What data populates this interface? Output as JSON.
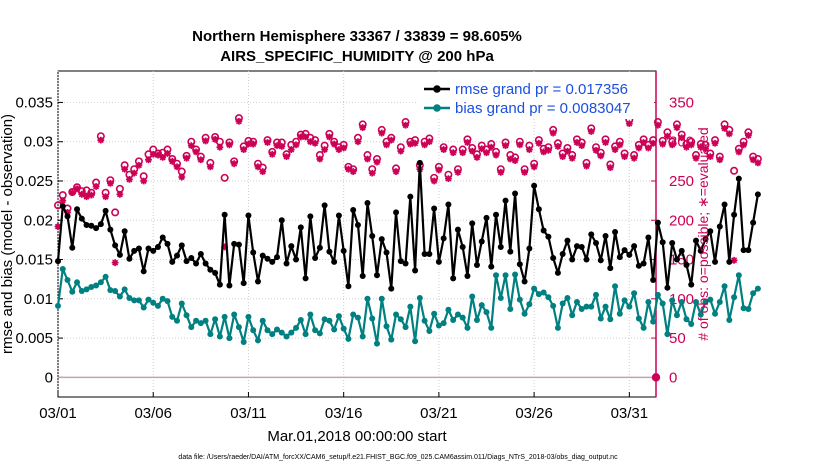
{
  "colors": {
    "rmse": "#000000",
    "bias": "#008080",
    "obs": "#cc0055",
    "legend_text": "#1a4fe0",
    "zero_line": "#c8a0b0"
  },
  "chart_data": {
    "type": "line",
    "title_line1": "Northern Hemisphere 33367 / 33839 = 98.605%",
    "title_line2": "AIRS_SPECIFIC_HUMIDITY @ 200 hPa",
    "xlabel": "Mar.01,2018 00:00:00 start",
    "ylabel": "rmse and bias (model - observation)",
    "y2label": "# of obs: o=possible; ∗=evaluated",
    "footnote": "data file: /Users/raeder/DAI/ATM_forcXX/CAM6_setup/f.e21.FHIST_BGC.f09_025.CAM6assim.011/Diags_NTrS_2018-03/obs_diag_output.nc",
    "xlim": [
      0,
      31.4
    ],
    "ylim": [
      -0.0025,
      0.039
    ],
    "y2lim": [
      -25,
      390
    ],
    "xticks": [
      0,
      5,
      10,
      15,
      20,
      25,
      30
    ],
    "xticklabels": [
      "03/01",
      "03/06",
      "03/11",
      "03/16",
      "03/21",
      "03/26",
      "03/31"
    ],
    "yticks": [
      0,
      0.005,
      0.01,
      0.015,
      0.02,
      0.025,
      0.03,
      0.035
    ],
    "yticklabels": [
      "0",
      "0.005",
      "0.01",
      "0.015",
      "0.02",
      "0.025",
      "0.03",
      "0.035"
    ],
    "y2ticks": [
      0,
      50,
      100,
      150,
      200,
      250,
      300,
      350
    ],
    "y2ticklabels": [
      "0",
      "50",
      "100",
      "150",
      "200",
      "250",
      "300",
      "350"
    ],
    "legend": [
      {
        "name": "rmse grand pr = 0.017356",
        "key": "rmse"
      },
      {
        "name": "bias grand pr = 0.0083047",
        "key": "bias"
      }
    ],
    "legend_position": "top-right",
    "step_days": 0.25,
    "series": [
      {
        "name": "rmse",
        "values": [
          0.0148,
          0.0218,
          0.0205,
          0.0165,
          0.0214,
          0.0202,
          0.0194,
          0.0193,
          0.019,
          0.0195,
          0.0212,
          0.0188,
          0.0168,
          0.0156,
          0.0186,
          0.0151,
          0.0161,
          0.0164,
          0.0135,
          0.0164,
          0.0161,
          0.0166,
          0.0178,
          0.017,
          0.0147,
          0.0155,
          0.0168,
          0.0148,
          0.0152,
          0.0145,
          0.0157,
          0.0145,
          0.0137,
          0.0133,
          0.0118,
          0.0207,
          0.0117,
          0.017,
          0.0169,
          0.012,
          0.0206,
          0.0159,
          0.0122,
          0.0155,
          0.0151,
          0.0147,
          0.0153,
          0.02,
          0.0145,
          0.0167,
          0.015,
          0.0191,
          0.0126,
          0.0205,
          0.0152,
          0.0165,
          0.0219,
          0.016,
          0.0147,
          0.0206,
          0.0161,
          0.0116,
          0.0213,
          0.0194,
          0.0129,
          0.0222,
          0.018,
          0.013,
          0.0176,
          0.0159,
          0.0113,
          0.021,
          0.0148,
          0.0145,
          0.023,
          0.0136,
          0.0273,
          0.0157,
          0.0157,
          0.0215,
          0.0147,
          0.0177,
          0.022,
          0.0126,
          0.0188,
          0.0166,
          0.0129,
          0.0196,
          0.0143,
          0.0173,
          0.0203,
          0.0141,
          0.0207,
          0.0166,
          0.0225,
          0.016,
          0.0234,
          0.0144,
          0.0122,
          0.0164,
          0.0244,
          0.0214,
          0.0187,
          0.0179,
          0.0152,
          0.0133,
          0.0157,
          0.0174,
          0.015,
          0.0167,
          0.0166,
          0.015,
          0.0182,
          0.0171,
          0.0149,
          0.018,
          0.0139,
          0.0185,
          0.0153,
          0.0162,
          0.0156,
          0.0167,
          0.0142,
          0.0145,
          0.0178,
          0.0124,
          0.0197,
          0.0172,
          0.0114,
          0.0171,
          0.015,
          0.0161,
          0.0143,
          0.0118,
          0.0174,
          0.0161,
          0.0176,
          0.0186,
          0.0147,
          0.0192,
          0.022,
          0.0147,
          0.0207,
          0.0253,
          0.0162,
          0.0162,
          0.0197,
          0.0233
        ]
      },
      {
        "name": "bias",
        "values": [
          0.0091,
          0.0138,
          0.0124,
          0.0109,
          0.0121,
          0.011,
          0.0112,
          0.0115,
          0.0117,
          0.0121,
          0.0128,
          0.0111,
          0.011,
          0.0103,
          0.0112,
          0.0101,
          0.0098,
          0.0098,
          0.0089,
          0.0099,
          0.0095,
          0.0091,
          0.01,
          0.0097,
          0.0077,
          0.0072,
          0.0094,
          0.0079,
          0.0064,
          0.0072,
          0.0069,
          0.0072,
          0.0055,
          0.0074,
          0.0052,
          0.0077,
          0.005,
          0.008,
          0.0064,
          0.0045,
          0.0077,
          0.006,
          0.0047,
          0.0072,
          0.006,
          0.0055,
          0.0061,
          0.0057,
          0.0052,
          0.0057,
          0.0063,
          0.0073,
          0.0055,
          0.008,
          0.006,
          0.0056,
          0.0074,
          0.0072,
          0.0061,
          0.0078,
          0.0062,
          0.0049,
          0.008,
          0.0076,
          0.0052,
          0.01,
          0.0075,
          0.0043,
          0.01,
          0.0065,
          0.0048,
          0.008,
          0.0074,
          0.0064,
          0.009,
          0.0046,
          0.0101,
          0.0072,
          0.0059,
          0.0081,
          0.0066,
          0.0069,
          0.0086,
          0.0073,
          0.008,
          0.0076,
          0.0063,
          0.0103,
          0.0073,
          0.0092,
          0.0083,
          0.0063,
          0.013,
          0.0101,
          0.013,
          0.0087,
          0.0131,
          0.0099,
          0.0081,
          0.0093,
          0.0113,
          0.0106,
          0.0108,
          0.0102,
          0.0091,
          0.0063,
          0.0094,
          0.0101,
          0.0079,
          0.0096,
          0.0087,
          0.009,
          0.009,
          0.0105,
          0.0075,
          0.009,
          0.0074,
          0.0116,
          0.0081,
          0.0098,
          0.009,
          0.0107,
          0.0075,
          0.0063,
          0.0096,
          0.0071,
          0.0105,
          0.0094,
          0.0055,
          0.0098,
          0.0079,
          0.0096,
          0.0074,
          0.0068,
          0.0096,
          0.008,
          0.0096,
          0.0099,
          0.0081,
          0.0096,
          0.0116,
          0.0073,
          0.0102,
          0.013,
          0.0088,
          0.0087,
          0.0107,
          0.0113
        ]
      },
      {
        "name": "obs_possible",
        "values": [
          219,
          232,
          215,
          236,
          242,
          237,
          238,
          235,
          248,
          307,
          235,
          251,
          210,
          240,
          270,
          258,
          265,
          275,
          256,
          284,
          290,
          285,
          286,
          290,
          278,
          272,
          262,
          282,
          300,
          290,
          281,
          305,
          273,
          306,
          300,
          254,
          299,
          275,
          330,
          294,
          301,
          300,
          272,
          267,
          302,
          287,
          299,
          299,
          284,
          296,
          300,
          309,
          310,
          305,
          302,
          283,
          295,
          310,
          300,
          293,
          296,
          268,
          265,
          305,
          322,
          283,
          265,
          278,
          315,
          300,
          305,
          266,
          293,
          325,
          300,
          302,
          270,
          300,
          304,
          254,
          268,
          293,
          258,
          290,
          265,
          290,
          303,
          292,
          284,
          295,
          290,
          297,
          287,
          265,
          299,
          283,
          280,
          300,
          265,
          295,
          272,
          302,
          291,
          293,
          315,
          298,
          285,
          292,
          283,
          303,
          299,
          273,
          317,
          293,
          286,
          303,
          271,
          294,
          300,
          285,
          328,
          283,
          296,
          303,
          296,
          302,
          325,
          301,
          312,
          300,
          322,
          309,
          297,
          300,
          283,
          297,
          296,
          285,
          302,
          281,
          322,
          315,
          263,
          291,
          300,
          312,
          281,
          278
        ]
      },
      {
        "name": "obs_evaluated",
        "values": [
          192,
          225,
          210,
          235,
          240,
          233,
          230,
          232,
          243,
          302,
          230,
          247,
          146,
          233,
          265,
          252,
          260,
          270,
          250,
          277,
          284,
          283,
          280,
          285,
          275,
          268,
          255,
          279,
          295,
          287,
          277,
          301,
          268,
          303,
          293,
          166,
          296,
          272,
          326,
          290,
          297,
          297,
          268,
          262,
          299,
          284,
          295,
          294,
          281,
          290,
          296,
          306,
          306,
          300,
          298,
          278,
          290,
          306,
          297,
          290,
          292,
          265,
          262,
          300,
          318,
          278,
          260,
          274,
          311,
          296,
          302,
          262,
          288,
          321,
          297,
          298,
          265,
          296,
          300,
          250,
          264,
          290,
          253,
          286,
          261,
          286,
          299,
          288,
          280,
          291,
          286,
          293,
          283,
          261,
          295,
          278,
          276,
          296,
          261,
          290,
          268,
          298,
          287,
          289,
          311,
          294,
          281,
          288,
          279,
          299,
          295,
          269,
          313,
          289,
          282,
          299,
          267,
          290,
          296,
          281,
          323,
          279,
          292,
          299,
          292,
          298,
          321,
          297,
          307,
          296,
          318,
          305,
          293,
          296,
          279,
          293,
          291,
          281,
          298,
          277,
          317,
          310,
          149,
          287,
          296,
          308,
          277,
          273
        ]
      }
    ]
  }
}
